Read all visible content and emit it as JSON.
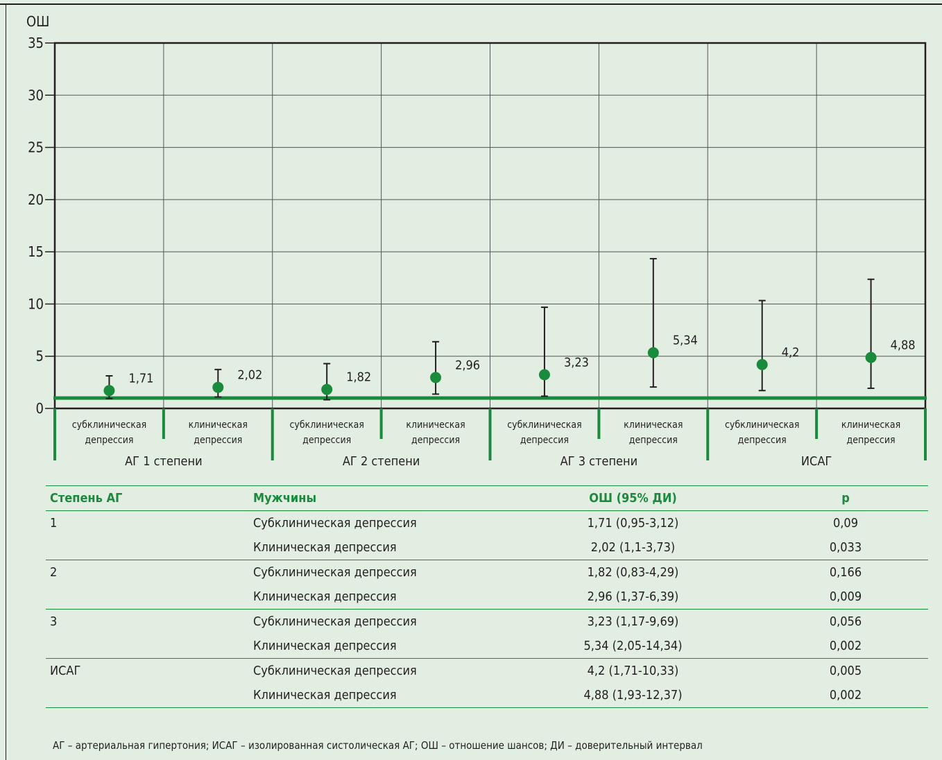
{
  "colors": {
    "accent_green": "#1a8a3d",
    "marker": "#1a8a3d",
    "background": "#e3eee2",
    "ink": "#231f20"
  },
  "chart_data": {
    "type": "scatter",
    "ylabel": "ОШ",
    "ylim": [
      0,
      35
    ],
    "yticks": [
      0,
      5,
      10,
      15,
      20,
      25,
      30,
      35
    ],
    "grid": true,
    "reference_line": 1,
    "groups": [
      "АГ 1 степени",
      "АГ 2 степени",
      "АГ 3 степени",
      "ИСАГ"
    ],
    "categories": [
      [
        "субклиническая",
        "депрессия"
      ],
      [
        "клиническая",
        "депрессия"
      ],
      [
        "субклиническая",
        "депрессия"
      ],
      [
        "клиническая",
        "депрессия"
      ],
      [
        "субклиническая",
        "депрессия"
      ],
      [
        "клиническая",
        "депрессия"
      ],
      [
        "субклиническая",
        "депрессия"
      ],
      [
        "клиническая",
        "депрессия"
      ]
    ],
    "values": [
      1.71,
      2.02,
      1.82,
      2.96,
      3.23,
      5.34,
      4.2,
      4.88
    ],
    "value_labels": [
      "1,71",
      "2,02",
      "1,82",
      "2,96",
      "3,23",
      "5,34",
      "4,2",
      "4,88"
    ],
    "ci_low": [
      0.95,
      1.1,
      0.83,
      1.37,
      1.17,
      2.05,
      1.71,
      1.93
    ],
    "ci_high": [
      3.12,
      3.73,
      4.29,
      6.39,
      9.69,
      14.34,
      10.33,
      12.37
    ]
  },
  "table": {
    "headers": [
      "Степень АГ",
      "Мужчины",
      "ОШ (95% ДИ)",
      "р"
    ],
    "rows": [
      {
        "grade": "1",
        "group": "Субклиническая депрессия",
        "or": "1,71 (0,95-3,12)",
        "p": "0,09"
      },
      {
        "grade": "",
        "group": "Клиническая депрессия",
        "or": "2,02 (1,1-3,73)",
        "p": "0,033"
      },
      {
        "grade": "2",
        "group": "Субклиническая депрессия",
        "or": "1,82 (0,83-4,29)",
        "p": "0,166"
      },
      {
        "grade": "",
        "group": "Клиническая депрессия",
        "or": "2,96 (1,37-6,39)",
        "p": "0,009"
      },
      {
        "grade": "3",
        "group": "Субклиническая депрессия",
        "or": "3,23 (1,17-9,69)",
        "p": "0,056"
      },
      {
        "grade": "",
        "group": "Клиническая депрессия",
        "or": "5,34 (2,05-14,34)",
        "p": "0,002"
      },
      {
        "grade": "ИСАГ",
        "group": "Субклиническая депрессия",
        "or": "4,2 (1,71-10,33)",
        "p": "0,005"
      },
      {
        "grade": "",
        "group": "Клиническая депрессия",
        "or": "4,88 (1,93-12,37)",
        "p": "0,002"
      }
    ]
  },
  "footnote": "АГ – артериальная гипертония; ИСАГ – изолированная систолическая АГ; ОШ – отношение шансов; ДИ – доверительный интервал"
}
